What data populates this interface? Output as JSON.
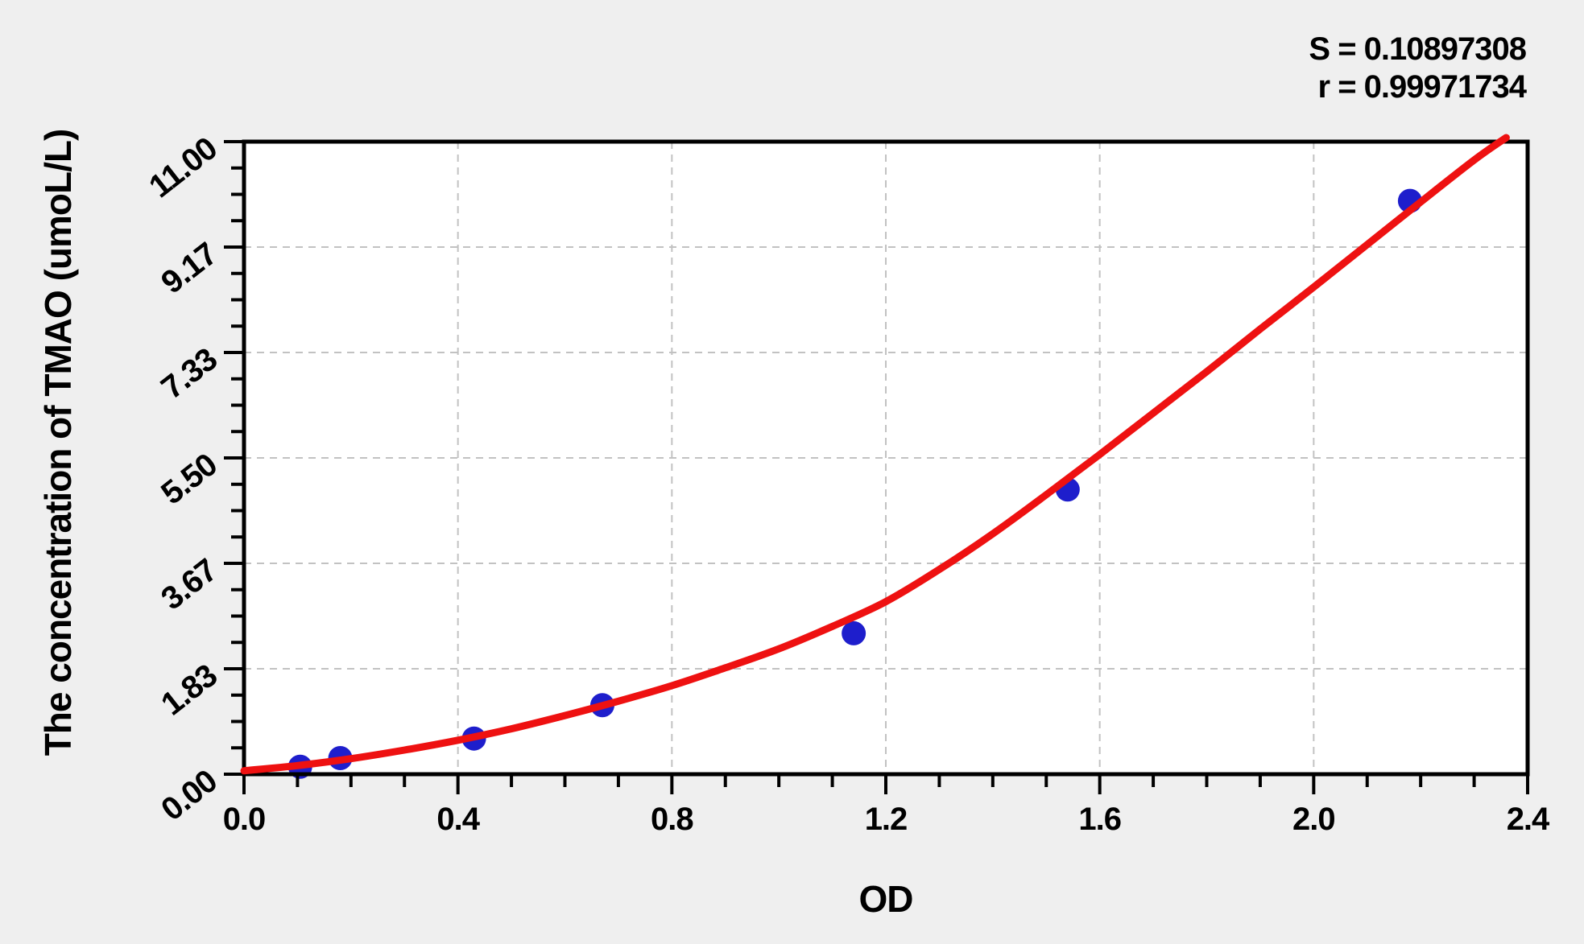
{
  "page": {
    "background": "#efefef",
    "plot_background": "#ffffff",
    "axis_color": "#000000",
    "grid_color": "#c2c2c2",
    "text_color": "#000000"
  },
  "stats": {
    "s_text": "S = 0.10897308",
    "r_text": "r = 0.99971734"
  },
  "chart_data": {
    "type": "scatter",
    "title": "",
    "xlabel": "OD",
    "ylabel": "The concentration of TMAO (umoL/L)",
    "xlim": [
      0.0,
      2.4
    ],
    "ylim": [
      0.0,
      11.0
    ],
    "grid": {
      "style": "dashed",
      "on_major_ticks": true,
      "color": "#c2c2c2"
    },
    "legend": "none",
    "x_ticks": {
      "major_values": [
        0.0,
        0.4,
        0.8,
        1.2,
        1.6,
        2.0,
        2.4
      ],
      "labels": [
        "0.0",
        "0.4",
        "0.8",
        "1.2",
        "1.6",
        "2.0",
        "2.4"
      ],
      "minor_step": 0.1
    },
    "y_ticks": {
      "major_values": [
        0.0,
        1.8333,
        3.6667,
        5.5,
        7.3333,
        9.1667,
        11.0
      ],
      "labels": [
        "0.00",
        "1.83",
        "3.67",
        "5.50",
        "7.33",
        "9.17",
        "11.00"
      ],
      "minors_per_gap": 3
    },
    "annotations": {
      "S": "0.10897308",
      "r": "0.99971734"
    },
    "series": [
      {
        "name": "standard-points",
        "type": "scatter",
        "color": "#1e1ecc",
        "marker": "circle",
        "marker_radius": 15,
        "points": [
          [
            0.105,
            0.13
          ],
          [
            0.18,
            0.28
          ],
          [
            0.43,
            0.62
          ],
          [
            0.67,
            1.2
          ],
          [
            1.14,
            2.45
          ],
          [
            1.54,
            4.95
          ],
          [
            2.18,
            9.97
          ]
        ]
      },
      {
        "name": "fitted-curve",
        "type": "line",
        "color": "#ee1111",
        "stroke_width": 9,
        "points": [
          [
            0.0,
            0.06
          ],
          [
            0.1,
            0.15
          ],
          [
            0.2,
            0.27
          ],
          [
            0.3,
            0.42
          ],
          [
            0.4,
            0.59
          ],
          [
            0.5,
            0.79
          ],
          [
            0.6,
            1.02
          ],
          [
            0.7,
            1.27
          ],
          [
            0.8,
            1.54
          ],
          [
            0.9,
            1.85
          ],
          [
            1.0,
            2.18
          ],
          [
            1.1,
            2.57
          ],
          [
            1.2,
            3.0
          ],
          [
            1.3,
            3.56
          ],
          [
            1.4,
            4.18
          ],
          [
            1.5,
            4.86
          ],
          [
            1.6,
            5.56
          ],
          [
            1.7,
            6.28
          ],
          [
            1.8,
            7.0
          ],
          [
            1.9,
            7.74
          ],
          [
            2.0,
            8.47
          ],
          [
            2.1,
            9.21
          ],
          [
            2.2,
            9.95
          ],
          [
            2.3,
            10.68
          ],
          [
            2.36,
            11.07
          ]
        ]
      }
    ]
  }
}
